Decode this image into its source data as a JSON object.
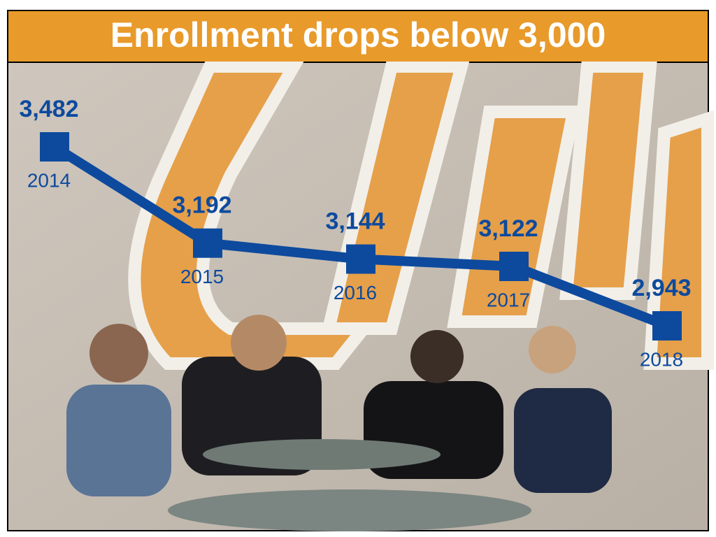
{
  "chart_data": {
    "type": "line",
    "title": "Enrollment drops below 3,000",
    "categories": [
      "2014",
      "2015",
      "2016",
      "2017",
      "2018"
    ],
    "values": [
      3482,
      3192,
      3144,
      3122,
      2943
    ],
    "value_labels": [
      "3,482",
      "3,192",
      "3,144",
      "3,122",
      "2,943"
    ],
    "color": "#0d4a9e",
    "title_color": "#e89a2a"
  }
}
